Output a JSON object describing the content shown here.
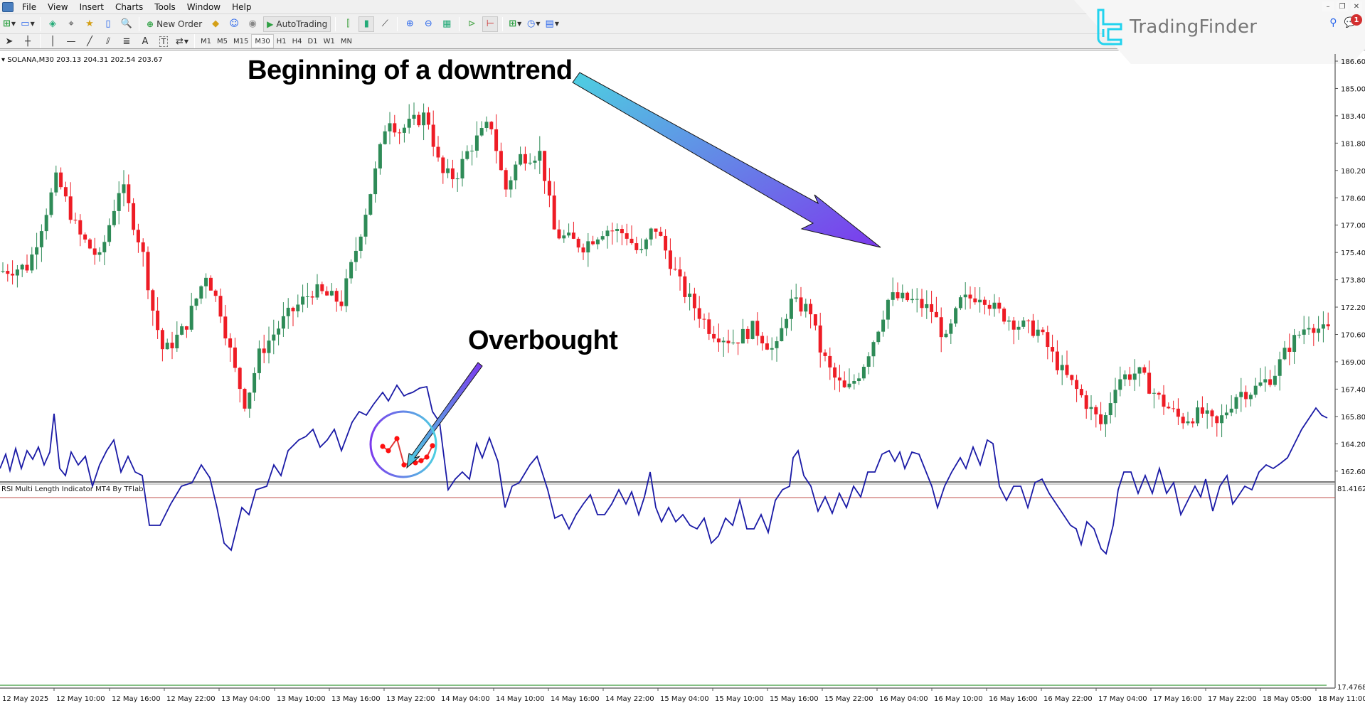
{
  "window": {
    "menu": [
      "File",
      "View",
      "Insert",
      "Charts",
      "Tools",
      "Window",
      "Help"
    ],
    "controls": [
      "minimize",
      "restore",
      "close"
    ]
  },
  "toolbar1": {
    "new_order_label": "New Order",
    "autotrading_label": "AutoTrading",
    "icons": [
      "new-chart-icon",
      "profiles-icon",
      "market-watch-icon",
      "data-window-icon",
      "navigator-icon",
      "terminal-icon",
      "strategy-tester-icon",
      "new-order-icon",
      "metaeditor-icon",
      "community-icon",
      "signals-icon",
      "autotrading-icon",
      "bar-chart-icon",
      "candlestick-icon",
      "line-chart-icon",
      "zoom-in-icon",
      "zoom-out-icon",
      "tile-windows-icon",
      "chart-shift-icon",
      "autoscroll-icon",
      "indicators-icon",
      "periods-icon",
      "templates-icon"
    ]
  },
  "toolbar2": {
    "tools": [
      "cursor-icon",
      "crosshair-icon",
      "vertical-line-icon",
      "horizontal-line-icon",
      "trendline-icon",
      "equidistant-channel-icon",
      "fibonacci-icon",
      "text-icon",
      "text-label-icon",
      "arrows-icon"
    ],
    "text_tool": "A",
    "label_tool": "T",
    "timeframes": [
      "M1",
      "M5",
      "M15",
      "M30",
      "H1",
      "H4",
      "D1",
      "W1",
      "MN"
    ],
    "active_timeframe": "M30"
  },
  "branding": {
    "logo_text": "TradingFinder",
    "notification_count": "1",
    "accent": "#22d3ee"
  },
  "chart": {
    "symbol_info": "SOLANA,M30  203.13 204.31 202.54 203.67",
    "price_axis": [
      "186.60",
      "185.00",
      "183.40",
      "181.80",
      "180.20",
      "178.60",
      "177.00",
      "175.40",
      "173.80",
      "172.20",
      "170.60",
      "169.00",
      "167.40",
      "165.80",
      "164.20",
      "162.60"
    ],
    "time_axis": [
      "12 May 2025",
      "12 May 10:00",
      "12 May 16:00",
      "12 May 22:00",
      "13 May 04:00",
      "13 May 10:00",
      "13 May 16:00",
      "13 May 22:00",
      "14 May 04:00",
      "14 May 10:00",
      "14 May 16:00",
      "14 May 22:00",
      "15 May 04:00",
      "15 May 10:00",
      "15 May 16:00",
      "15 May 22:00",
      "16 May 04:00",
      "16 May 10:00",
      "16 May 16:00",
      "16 May 22:00",
      "17 May 04:00",
      "17 May 16:00",
      "17 May 22:00",
      "18 May 05:00",
      "18 May 11:00"
    ],
    "bull_color": "#2e8b57",
    "bear_color": "#ee1c25"
  },
  "indicator": {
    "label": "RSI Multi Length Indicator MT4 By TFlab",
    "upper_value": "81.41627",
    "lower_value": "17.47688",
    "line_color": "#1a1aa6",
    "overbought_color": "#e03a3a",
    "upper_level_color": "#c0504d",
    "lower_level_color": "#3a9a3a"
  },
  "annotations": {
    "downtrend": "Beginning of a downtrend",
    "overbought": "Overbought"
  }
}
